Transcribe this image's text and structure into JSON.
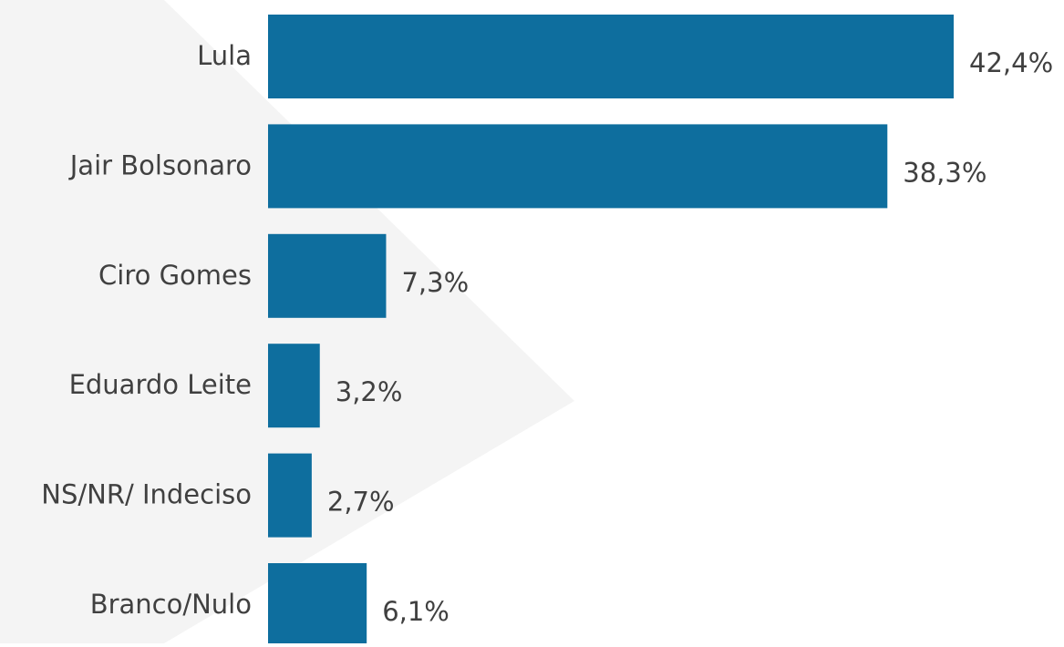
{
  "chart_data": {
    "type": "bar",
    "orientation": "horizontal",
    "categories": [
      "Lula",
      "Jair Bolsonaro",
      "Ciro Gomes",
      "Eduardo Leite",
      "NS/NR/ Indeciso",
      "Branco/Nulo"
    ],
    "values": [
      42.4,
      38.3,
      7.3,
      3.2,
      2.7,
      6.1
    ],
    "value_labels": [
      "42,4%",
      "38,3%",
      "7,3%",
      "3,2%",
      "2,7%",
      "6,1%"
    ],
    "title": "",
    "xlabel": "",
    "ylabel": "",
    "xlim": [
      0,
      42.4
    ],
    "grid": false,
    "legend": "none",
    "bar_color": "#0e6e9e",
    "label_color": "#404040",
    "background_shape_color": "#f4f4f4"
  }
}
